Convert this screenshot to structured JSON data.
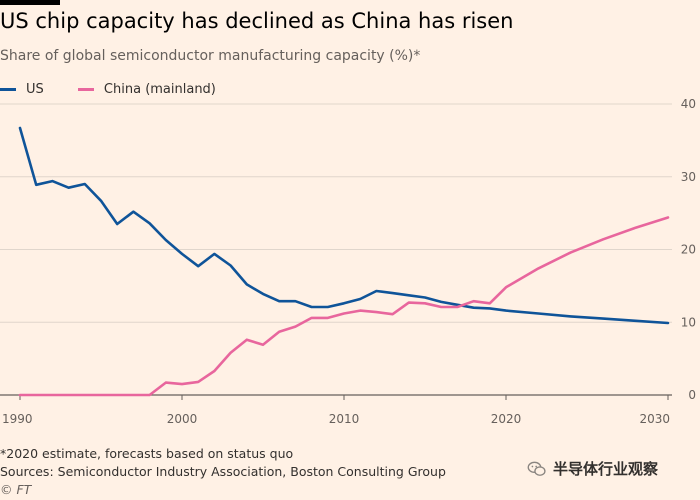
{
  "header": {
    "title": "US chip capacity has declined as China has risen",
    "subtitle": "Share of global semiconductor manufacturing capacity (%)*"
  },
  "legend": [
    {
      "label": "US",
      "color": "#0f5499"
    },
    {
      "label": "China (mainland)",
      "color": "#e8669d"
    }
  ],
  "footer": {
    "note": "*2020 estimate, forecasts based on status quo",
    "sources": "Sources: Semiconductor Industry Association, Boston Consulting Group",
    "credit": "© FT"
  },
  "watermark": {
    "text": "半导体行业观察",
    "icon": "wechat-icon"
  },
  "chart_data": {
    "type": "line",
    "title": "US chip capacity has declined as China has risen",
    "ylabel": "Share of global semiconductor manufacturing capacity (%)",
    "xlim": [
      1990,
      2030
    ],
    "ylim": [
      0,
      40
    ],
    "xticks": [
      1990,
      2000,
      2010,
      2020,
      2030
    ],
    "yticks": [
      0,
      10,
      20,
      30,
      40
    ],
    "grid": true,
    "legend_position": "top-left",
    "series": [
      {
        "name": "US",
        "color": "#0f5499",
        "x": [
          1990,
          1991,
          1992,
          1993,
          1994,
          1995,
          1996,
          1997,
          1998,
          1999,
          2000,
          2001,
          2002,
          2003,
          2004,
          2005,
          2006,
          2007,
          2008,
          2009,
          2010,
          2011,
          2012,
          2013,
          2014,
          2015,
          2016,
          2017,
          2018,
          2019,
          2020,
          2022,
          2024,
          2026,
          2028,
          2030
        ],
        "y": [
          36.7,
          28.9,
          29.4,
          28.5,
          29.0,
          26.7,
          23.5,
          25.2,
          23.6,
          21.3,
          19.4,
          17.7,
          19.4,
          17.8,
          15.2,
          13.9,
          12.9,
          12.9,
          12.1,
          12.1,
          12.6,
          13.2,
          14.3,
          14.0,
          13.7,
          13.4,
          12.8,
          12.4,
          12.0,
          11.9,
          11.6,
          11.2,
          10.8,
          10.5,
          10.2,
          9.9
        ]
      },
      {
        "name": "China (mainland)",
        "color": "#e8669d",
        "x": [
          1990,
          1991,
          1992,
          1993,
          1994,
          1995,
          1996,
          1997,
          1998,
          1999,
          2000,
          2001,
          2002,
          2003,
          2004,
          2005,
          2006,
          2007,
          2008,
          2009,
          2010,
          2011,
          2012,
          2013,
          2014,
          2015,
          2016,
          2017,
          2018,
          2019,
          2020,
          2022,
          2024,
          2026,
          2028,
          2030
        ],
        "y": [
          0,
          0,
          0,
          0,
          0,
          0,
          0,
          0,
          0,
          1.7,
          1.5,
          1.8,
          3.3,
          5.8,
          7.6,
          6.9,
          8.7,
          9.4,
          10.6,
          10.6,
          11.2,
          11.6,
          11.4,
          11.1,
          12.7,
          12.6,
          12.1,
          12.1,
          12.9,
          12.6,
          14.8,
          17.4,
          19.6,
          21.4,
          23.0,
          24.4
        ]
      }
    ]
  }
}
